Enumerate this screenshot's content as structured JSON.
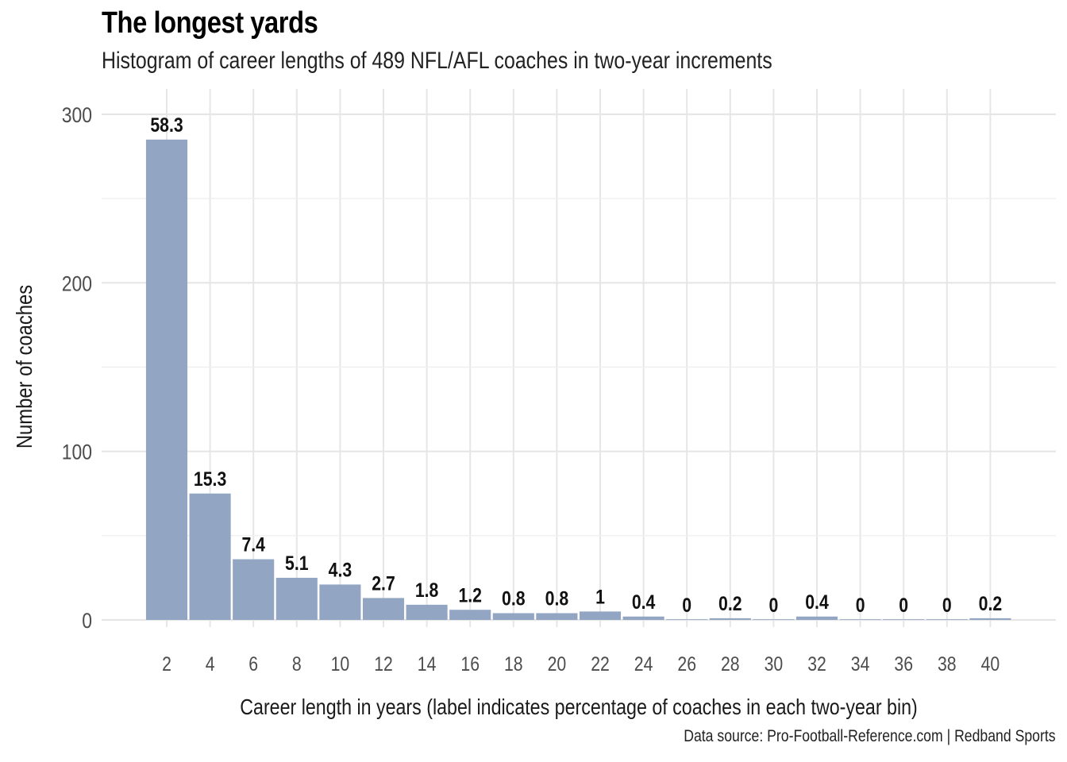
{
  "header": {
    "title": "The longest yards",
    "subtitle": "Histogram of career lengths of 489 NFL/AFL coaches in two-year increments"
  },
  "caption": "Data source: Pro-Football-Reference.com | Redband Sports",
  "chart_data": {
    "type": "bar",
    "title": "The longest yards",
    "subtitle": "Histogram of career lengths of 489 NFL/AFL coaches in two-year increments",
    "xlabel": "Career length in years (label indicates percentage of coaches in each two-year bin)",
    "ylabel": "Number of coaches",
    "categories": [
      2,
      4,
      6,
      8,
      10,
      12,
      14,
      16,
      18,
      20,
      22,
      24,
      26,
      28,
      30,
      32,
      34,
      36,
      38,
      40
    ],
    "values": [
      285,
      75,
      36,
      25,
      21,
      13,
      9,
      6,
      4,
      4,
      5,
      2,
      0,
      1,
      0,
      2,
      0,
      0,
      0,
      1
    ],
    "labels": [
      "58.3",
      "15.3",
      "7.4",
      "5.1",
      "4.3",
      "2.7",
      "1.8",
      "1.2",
      "0.8",
      "0.8",
      "1",
      "0.4",
      "0",
      "0.2",
      "0",
      "0.4",
      "0",
      "0",
      "0",
      "0.2"
    ],
    "y_ticks": [
      0,
      100,
      200,
      300
    ],
    "ylim": [
      0,
      300
    ],
    "bar_color": "#92a5c3",
    "grid": true,
    "legend": "none"
  }
}
